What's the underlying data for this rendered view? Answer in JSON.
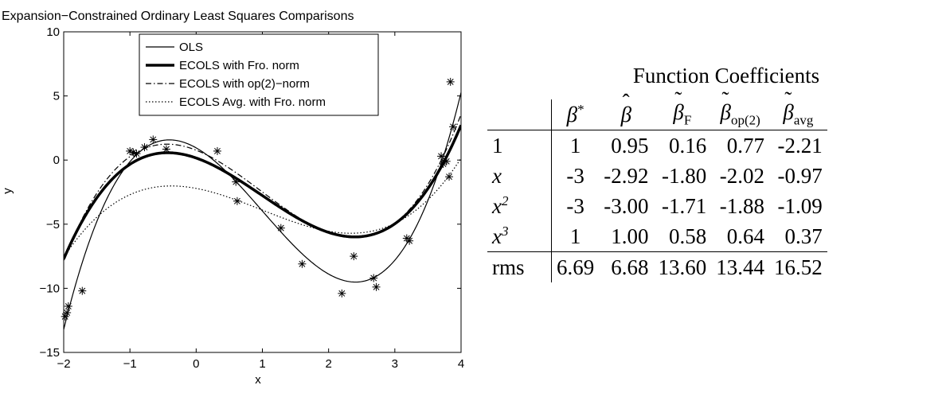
{
  "chart_data": {
    "type": "line",
    "title": "Expansion−Constrained Ordinary Least Squares Comparisons",
    "xlabel": "x",
    "ylabel": "y",
    "xlim": [
      -2,
      4
    ],
    "ylim": [
      -15,
      10
    ],
    "xticks": [
      -2,
      -1,
      0,
      1,
      2,
      3,
      4
    ],
    "yticks": [
      -15,
      -10,
      -5,
      0,
      5,
      10
    ],
    "xtick_labels": [
      "−2",
      "−1",
      "0",
      "1",
      "2",
      "3",
      "4"
    ],
    "ytick_labels": [
      "−15",
      "−10",
      "−5",
      "0",
      "5",
      "10"
    ],
    "grid": false,
    "legend_position": "top-center",
    "series": [
      {
        "name": "OLS",
        "style": "solid",
        "width": "thin",
        "coefficients": [
          0.95,
          -2.92,
          -3.0,
          1.0
        ]
      },
      {
        "name": "ECOLS with Fro. norm",
        "style": "solid",
        "width": "thick",
        "coefficients": [
          0.16,
          -1.8,
          -1.71,
          0.58
        ]
      },
      {
        "name": "ECOLS with op(2)−norm",
        "style": "dashdot",
        "width": "thin",
        "coefficients": [
          0.77,
          -2.02,
          -1.88,
          0.64
        ]
      },
      {
        "name": "ECOLS Avg. with Fro. norm",
        "style": "dotted",
        "width": "thin",
        "coefficients": [
          -2.21,
          -0.97,
          -1.09,
          0.37
        ]
      }
    ],
    "scatter_points": [
      {
        "x": -1.98,
        "y": -12.2
      },
      {
        "x": -1.95,
        "y": -11.9
      },
      {
        "x": -1.93,
        "y": -11.4
      },
      {
        "x": -1.72,
        "y": -10.2
      },
      {
        "x": -1.0,
        "y": 0.7
      },
      {
        "x": -0.95,
        "y": 0.6
      },
      {
        "x": -0.9,
        "y": 0.5
      },
      {
        "x": -0.78,
        "y": 1.0
      },
      {
        "x": -0.65,
        "y": 1.6
      },
      {
        "x": -0.45,
        "y": 0.85
      },
      {
        "x": 0.32,
        "y": 0.7
      },
      {
        "x": 0.6,
        "y": -1.7
      },
      {
        "x": 0.62,
        "y": -3.2
      },
      {
        "x": 1.28,
        "y": -5.3
      },
      {
        "x": 1.6,
        "y": -8.1
      },
      {
        "x": 2.2,
        "y": -10.4
      },
      {
        "x": 2.38,
        "y": -7.5
      },
      {
        "x": 2.68,
        "y": -9.2
      },
      {
        "x": 2.72,
        "y": -9.9
      },
      {
        "x": 3.18,
        "y": -6.1
      },
      {
        "x": 3.22,
        "y": -6.3
      },
      {
        "x": 3.7,
        "y": 0.3
      },
      {
        "x": 3.73,
        "y": -0.3
      },
      {
        "x": 3.78,
        "y": -0.1
      },
      {
        "x": 3.82,
        "y": -1.3
      },
      {
        "x": 3.84,
        "y": 6.1
      },
      {
        "x": 3.88,
        "y": 2.6
      }
    ]
  },
  "table": {
    "title": "Function Coefficients",
    "columns": [
      {
        "symbol": "β",
        "sup": "*",
        "sub": "",
        "accent": ""
      },
      {
        "symbol": "β",
        "sup": "",
        "sub": "",
        "accent": "ˆ"
      },
      {
        "symbol": "β",
        "sup": "",
        "sub": "F",
        "accent": "˜"
      },
      {
        "symbol": "β",
        "sup": "",
        "sub": "op(2)",
        "accent": "˜"
      },
      {
        "symbol": "β",
        "sup": "",
        "sub": "avg",
        "accent": "˜"
      }
    ],
    "rows": [
      {
        "label": "1",
        "label_sup": "",
        "italic": false,
        "values": [
          "1",
          "0.95",
          "0.16",
          "0.77",
          "-2.21"
        ]
      },
      {
        "label": "x",
        "label_sup": "",
        "italic": true,
        "values": [
          "-3",
          "-2.92",
          "-1.80",
          "-2.02",
          "-0.97"
        ]
      },
      {
        "label": "x",
        "label_sup": "2",
        "italic": true,
        "values": [
          "-3",
          "-3.00",
          "-1.71",
          "-1.88",
          "-1.09"
        ]
      },
      {
        "label": "x",
        "label_sup": "3",
        "italic": true,
        "values": [
          "1",
          "1.00",
          "0.58",
          "0.64",
          "0.37"
        ]
      },
      {
        "label": "rms",
        "label_sup": "",
        "italic": false,
        "values": [
          "6.69",
          "6.68",
          "13.60",
          "13.44",
          "16.52"
        ]
      }
    ]
  }
}
